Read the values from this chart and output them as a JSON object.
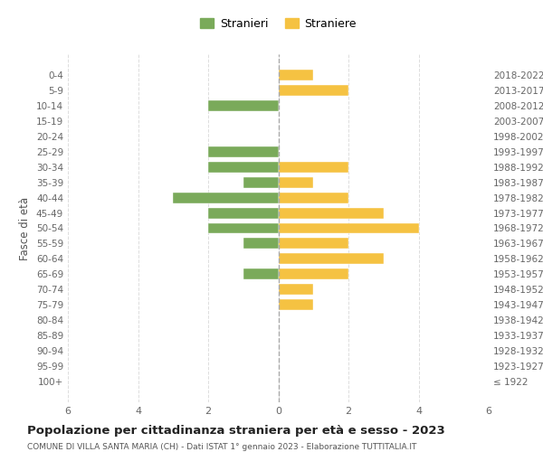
{
  "age_groups": [
    "100+",
    "95-99",
    "90-94",
    "85-89",
    "80-84",
    "75-79",
    "70-74",
    "65-69",
    "60-64",
    "55-59",
    "50-54",
    "45-49",
    "40-44",
    "35-39",
    "30-34",
    "25-29",
    "20-24",
    "15-19",
    "10-14",
    "5-9",
    "0-4"
  ],
  "birth_years": [
    "≤ 1922",
    "1923-1927",
    "1928-1932",
    "1933-1937",
    "1938-1942",
    "1943-1947",
    "1948-1952",
    "1953-1957",
    "1958-1962",
    "1963-1967",
    "1968-1972",
    "1973-1977",
    "1978-1982",
    "1983-1987",
    "1988-1992",
    "1993-1997",
    "1998-2002",
    "2003-2007",
    "2008-2012",
    "2013-2017",
    "2018-2022"
  ],
  "males": [
    0,
    0,
    0,
    0,
    0,
    0,
    0,
    1,
    0,
    1,
    2,
    2,
    3,
    1,
    2,
    2,
    0,
    0,
    2,
    0,
    0
  ],
  "females": [
    0,
    0,
    0,
    0,
    0,
    1,
    1,
    2,
    3,
    2,
    4,
    3,
    2,
    1,
    2,
    0,
    0,
    0,
    0,
    2,
    1
  ],
  "male_color": "#7aaa5a",
  "female_color": "#f5c242",
  "title": "Popolazione per cittadinanza straniera per età e sesso - 2023",
  "subtitle": "COMUNE DI VILLA SANTA MARIA (CH) - Dati ISTAT 1° gennaio 2023 - Elaborazione TUTTITALIA.IT",
  "legend_male": "Stranieri",
  "legend_female": "Straniere",
  "ylabel_left": "Fasce di età",
  "xlim": 6,
  "background_color": "#ffffff",
  "grid_color": "#dddddd",
  "bar_height": 0.7
}
